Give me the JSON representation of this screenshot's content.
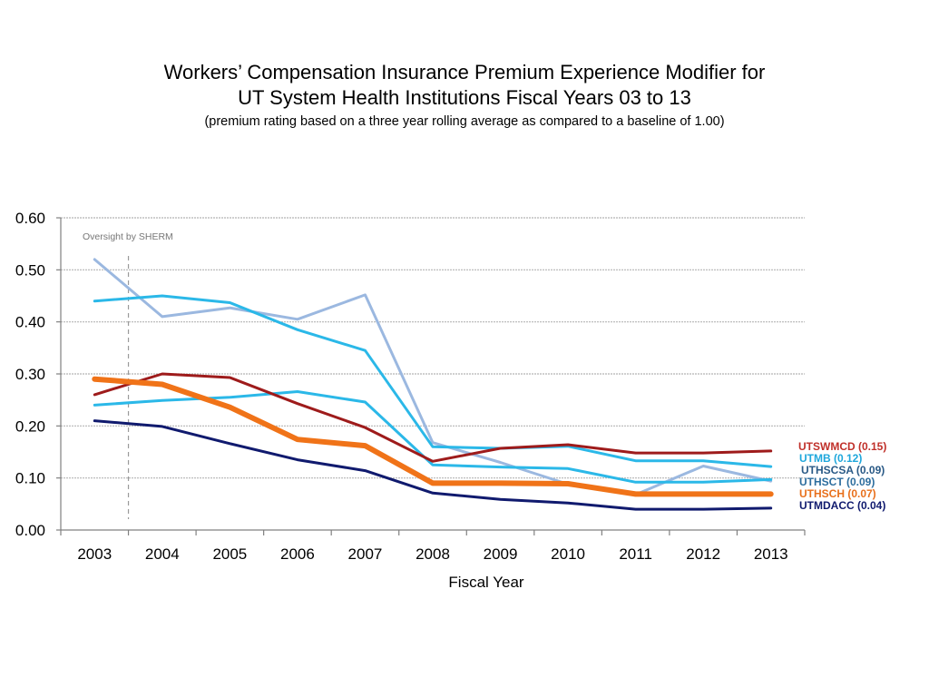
{
  "title_line1": "Workers’ Compensation Insurance Premium Experience Modifier for",
  "title_line2": "UT System Health Institutions Fiscal Years 03 to 13",
  "subtitle": "(premium rating based on a three year rolling average as compared to a baseline of 1.00)",
  "note": "Oversight by  SHERM",
  "chart_data": {
    "type": "line",
    "title": "Workers’ Compensation Insurance Premium Experience Modifier for UT System Health Institutions Fiscal Years 03 to 13",
    "xlabel": "Fiscal Year",
    "ylabel": "",
    "x": [
      "2003",
      "2004",
      "2005",
      "2006",
      "2007",
      "2008",
      "2009",
      "2010",
      "2011",
      "2012",
      "2013"
    ],
    "ylim": [
      0,
      0.6
    ],
    "yticks": [
      "0.00",
      "0.10",
      "0.20",
      "0.30",
      "0.40",
      "0.50",
      "0.60"
    ],
    "grid": true,
    "legend_position": "right",
    "series": [
      {
        "name": "UTHSCT (0.09)",
        "color": "#9bb8e0",
        "label_color": "#2e6e9e",
        "width": 3,
        "values": [
          0.52,
          0.41,
          0.427,
          0.405,
          0.452,
          0.168,
          0.13,
          0.088,
          0.068,
          0.123,
          0.094
        ]
      },
      {
        "name": "UTMB (0.12)",
        "color": "#2bb8e8",
        "label_color": "#1fa7dc",
        "width": 3,
        "values": [
          0.44,
          0.45,
          0.437,
          0.385,
          0.345,
          0.16,
          0.157,
          0.161,
          0.133,
          0.133,
          0.122
        ]
      },
      {
        "name": "UTHSCSA (0.09)",
        "color": "#2bb8e8",
        "label_color": "#2a5a86",
        "width": 3,
        "values": [
          0.24,
          0.249,
          0.255,
          0.266,
          0.246,
          0.125,
          0.121,
          0.118,
          0.092,
          0.092,
          0.097
        ]
      },
      {
        "name": "UTSWMCD (0.15)",
        "color": "#9e1b1b",
        "label_color": "#c0302a",
        "width": 3,
        "values": [
          0.26,
          0.3,
          0.293,
          0.243,
          0.197,
          0.132,
          0.157,
          0.164,
          0.148,
          0.148,
          0.152
        ]
      },
      {
        "name": "UTMDACC (0.04)",
        "color": "#101a6e",
        "label_color": "#101a6e",
        "width": 3,
        "values": [
          0.21,
          0.199,
          0.166,
          0.135,
          0.114,
          0.071,
          0.059,
          0.052,
          0.04,
          0.04,
          0.042
        ]
      },
      {
        "name": "UTHSCH (0.07)",
        "color": "#f07318",
        "label_color": "#e8701c",
        "width": 6,
        "values": [
          0.29,
          0.28,
          0.236,
          0.174,
          0.162,
          0.09,
          0.09,
          0.089,
          0.069,
          0.069,
          0.069
        ]
      }
    ]
  }
}
